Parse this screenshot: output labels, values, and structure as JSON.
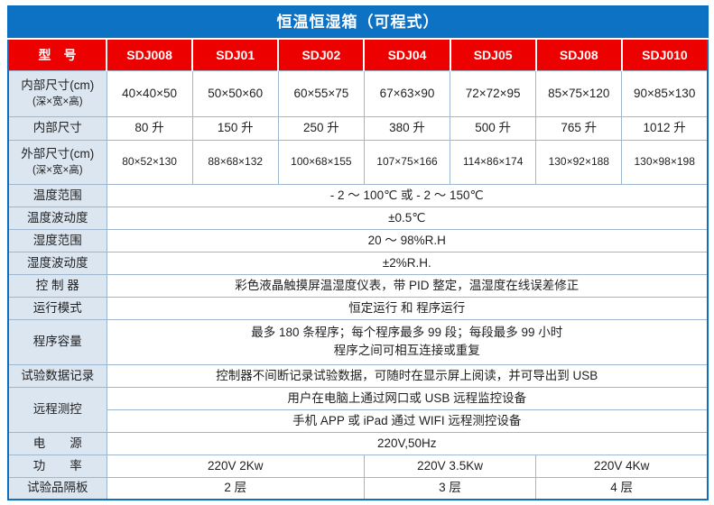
{
  "title": "恒温恒湿箱（可程式）",
  "header": {
    "label": "型　号",
    "models": [
      "SDJ008",
      "SDJ01",
      "SDJ02",
      "SDJ04",
      "SDJ05",
      "SDJ08",
      "SDJ010"
    ]
  },
  "rows": {
    "inner_dims": {
      "label": "内部尺寸(cm)",
      "sublabel": "(深×宽×高)",
      "values": [
        "40×40×50",
        "50×50×60",
        "60×55×75",
        "67×63×90",
        "72×72×95",
        "85×75×120",
        "90×85×130"
      ]
    },
    "volume": {
      "label": "内部尺寸",
      "values": [
        "80 升",
        "150 升",
        "250 升",
        "380 升",
        "500 升",
        "765 升",
        "1012 升"
      ]
    },
    "outer_dims": {
      "label": "外部尺寸(cm)",
      "sublabel": "(深×宽×高)",
      "values": [
        "80×52×130",
        "88×68×132",
        "100×68×155",
        "107×75×166",
        "114×86×174",
        "130×92×188",
        "130×98×198"
      ]
    },
    "temp_range": {
      "label": "温度范围",
      "value": "- 2 ～ 100℃ 或 - 2 ～ 150℃"
    },
    "temp_fluct": {
      "label": "温度波动度",
      "value": "±0.5℃"
    },
    "humi_range": {
      "label": "湿度范围",
      "value": "20 ～ 98%R.H"
    },
    "humi_fluct": {
      "label": "湿度波动度",
      "value": "±2%R.H."
    },
    "controller": {
      "label": "控 制 器",
      "value": "彩色液晶触摸屏温湿度仪表，带 PID 整定，温湿度在线误差修正"
    },
    "run_mode": {
      "label": "运行模式",
      "value": "恒定运行 和 程序运行"
    },
    "program": {
      "label": "程序容量",
      "line1": "最多 180 条程序；每个程序最多 99 段；每段最多 99 小时",
      "line2": "程序之间可相互连接或重复"
    },
    "data_record": {
      "label": "试验数据记录",
      "value": "控制器不间断记录试验数据，可随时在显示屏上阅读，并可导出到 USB"
    },
    "remote": {
      "label": "远程测控",
      "line1": "用户在电脑上通过网口或 USB 远程监控设备",
      "line2": "手机 APP 或 iPad 通过 WIFI 远程测控设备"
    },
    "power_supply": {
      "label": "电　　源",
      "value": "220V,50Hz"
    },
    "power": {
      "label": "功　　率",
      "values": [
        "220V 2Kw",
        "220V 3.5Kw",
        "220V 4Kw"
      ]
    },
    "shelves": {
      "label": "试验品隔板",
      "values": [
        "2 层",
        "3 层",
        "4 层"
      ]
    }
  },
  "colors": {
    "title_bg": "#0d72c4",
    "header_bg": "#ec0000",
    "label_bg": "#dce6f1",
    "grid_line": "#9eb6ce",
    "outer_border": "#0d6fc0"
  }
}
